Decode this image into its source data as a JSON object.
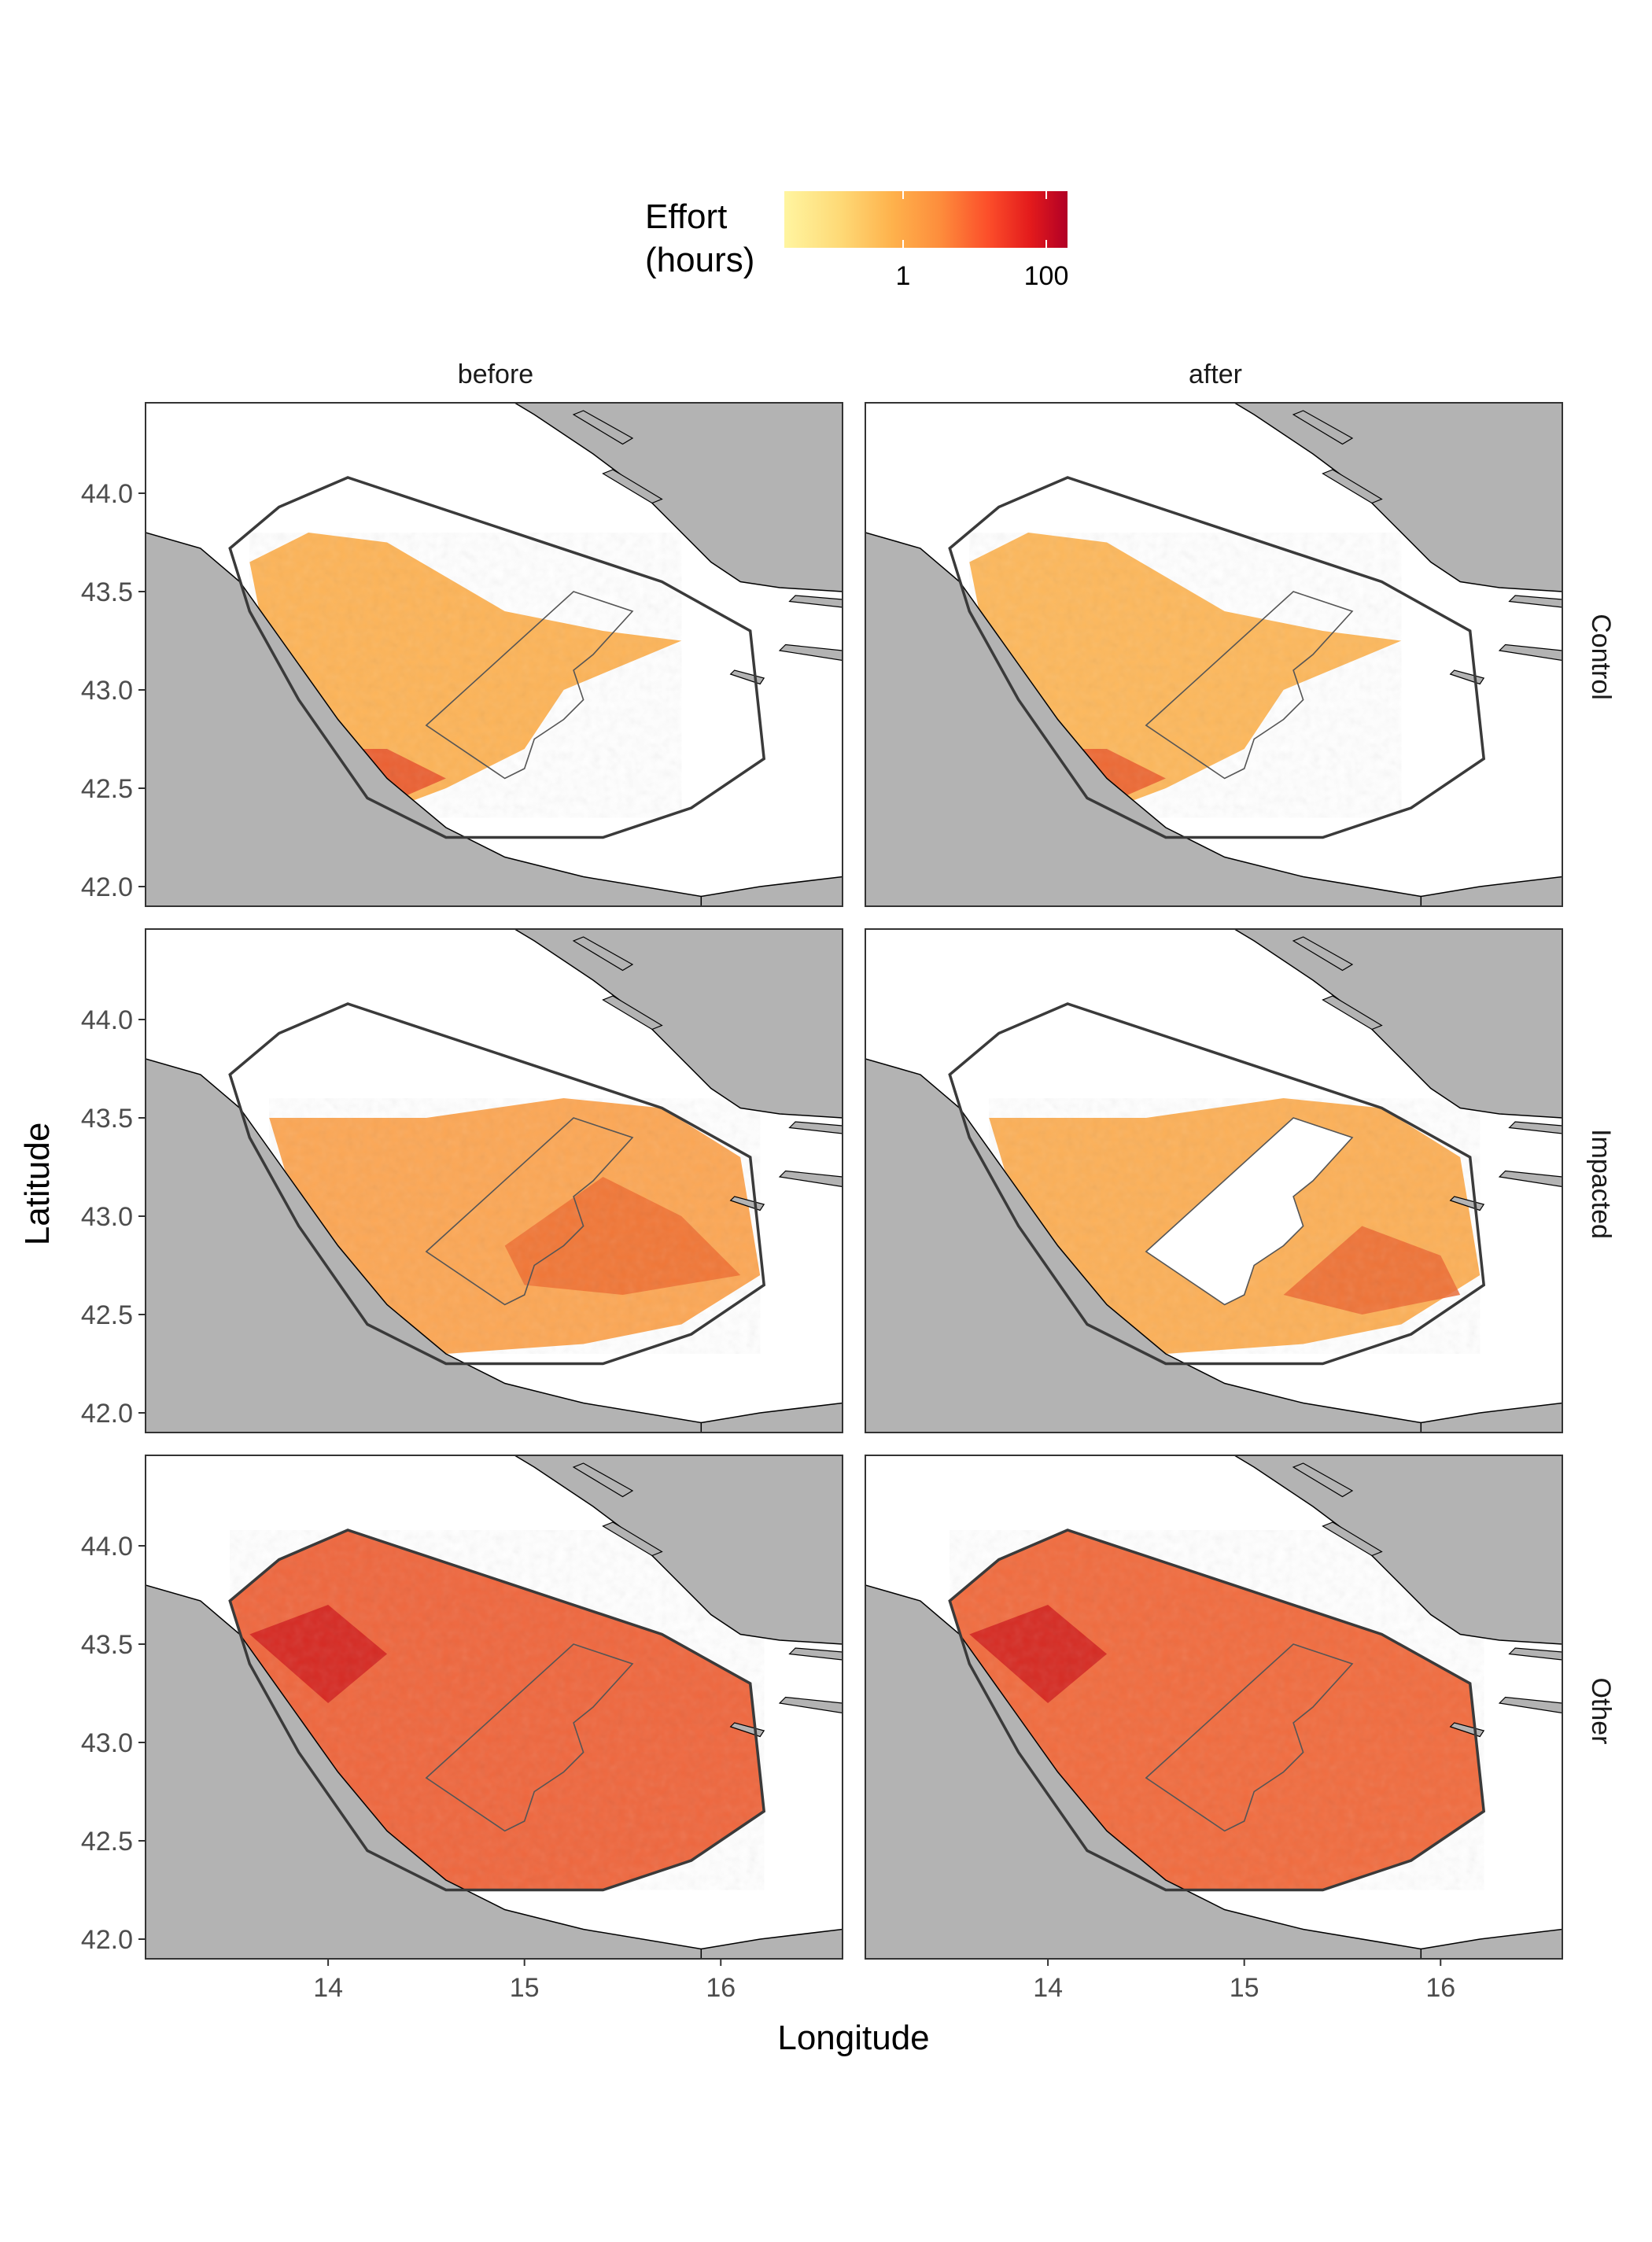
{
  "legend": {
    "title_line1": "Effort",
    "title_line2": "(hours)",
    "scale": "log",
    "tick_labels": [
      "1",
      "100"
    ],
    "tick_values": [
      1,
      100
    ],
    "palette": [
      "#FFF5A0",
      "#FED976",
      "#FEB24C",
      "#FD8D3C",
      "#FC4E2A",
      "#E31A1C",
      "#B10026"
    ]
  },
  "facets": {
    "columns": [
      "before",
      "after"
    ],
    "rows": [
      "Control",
      "Impacted",
      "Other"
    ]
  },
  "axes": {
    "x_title": "Longitude",
    "y_title": "Latitude",
    "x_ticks": [
      "14",
      "15",
      "16"
    ],
    "y_ticks": [
      "42.0",
      "42.5",
      "43.0",
      "43.5",
      "44.0"
    ]
  },
  "colors": {
    "land": "#B3B3B3",
    "sea": "#FFFFFF",
    "outline": "#3A3A3A"
  }
}
